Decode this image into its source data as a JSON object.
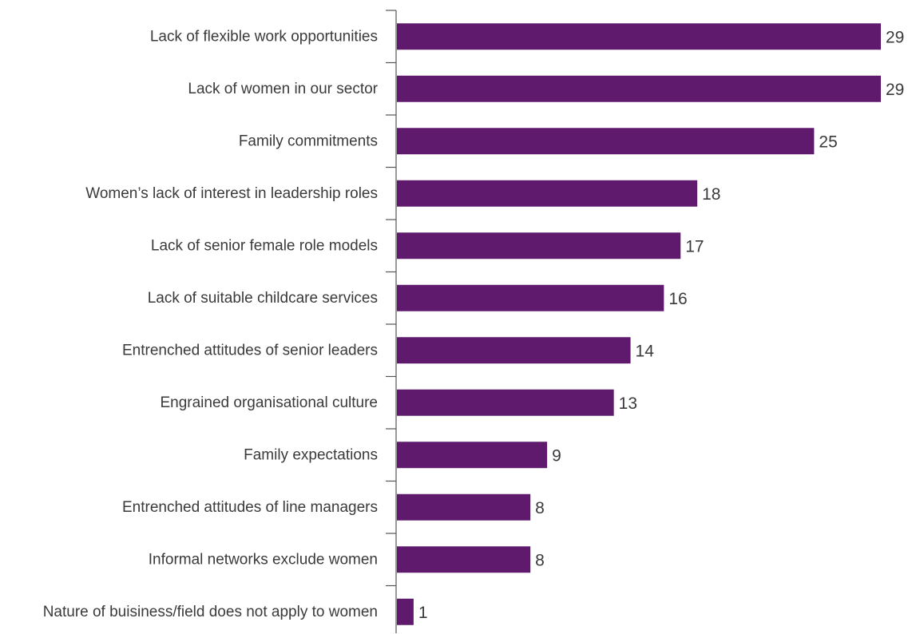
{
  "chart_data": {
    "type": "bar",
    "orientation": "horizontal",
    "categories": [
      "Lack of flexible work opportunities",
      "Lack of women in our sector",
      "Family commitments",
      "Women’s lack of interest in leadership roles",
      "Lack of senior female role models",
      "Lack of suitable childcare services",
      "Entrenched attitudes of senior leaders",
      "Engrained organisational culture",
      "Family expectations",
      "Entrenched attitudes of line managers",
      "Informal networks exclude women",
      "Nature of buisiness/field does not apply to women"
    ],
    "values": [
      29,
      29,
      25,
      18,
      17,
      16,
      14,
      13,
      9,
      8,
      8,
      1
    ],
    "xlim": [
      0,
      29
    ],
    "grid": false,
    "legend": "none",
    "title": "",
    "xlabel": "",
    "ylabel": "",
    "bar_color": "#5f1a6e",
    "text_color": "#3a3a3a",
    "axis_color": "#555555"
  }
}
